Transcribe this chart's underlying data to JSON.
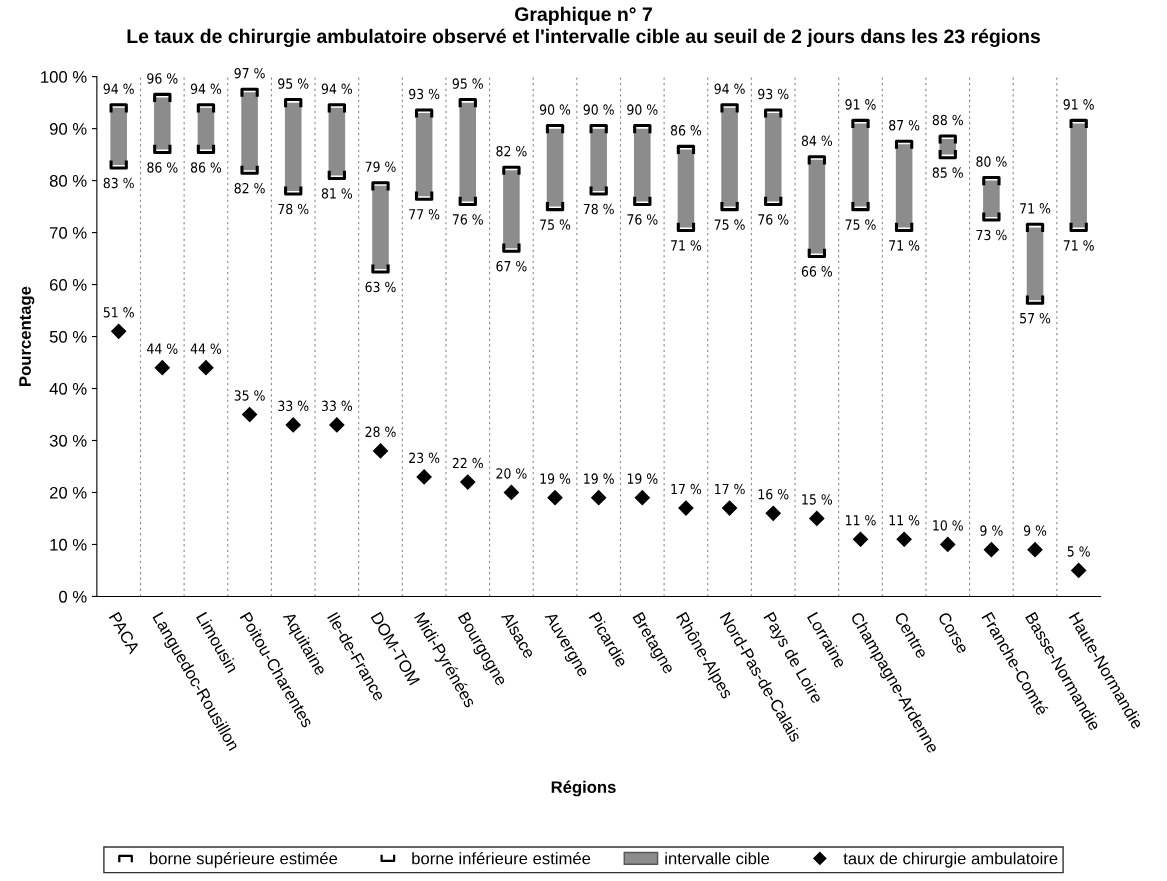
{
  "chart_data": {
    "type": "bar",
    "title": "Graphique n° 7",
    "subtitle": "Le taux de chirurgie ambulatoire observé et l'intervalle cible au seuil de 2 jours dans les 23 régions",
    "xlabel": "Régions",
    "ylabel": "Pourcentage",
    "categories": [
      "PACA",
      "Languedoc-Rousillon",
      "Limousin",
      "Poitou-Charentes",
      "Aquitaine",
      "Ile-de-France",
      "DOM-TOM",
      "Midi-Pyrénées",
      "Bourgogne",
      "Alsace",
      "Auvergne",
      "Picardie",
      "Bretagne",
      "Rhône-Alpes",
      "Nord-Pas-de-Calais",
      "Pays de Loire",
      "Lorraine",
      "Champagne-Ardenne",
      "Centre",
      "Corse",
      "Franche-Comté",
      "Basse-Normandie",
      "Haute-Normandie"
    ],
    "series": [
      {
        "name": "borne supérieure estimée",
        "type": "scatter",
        "color": "#000000",
        "values": [
          94,
          96,
          94,
          97,
          95,
          94,
          79,
          93,
          95,
          82,
          90,
          90,
          90,
          86,
          94,
          93,
          84,
          91,
          87,
          88,
          80,
          71,
          91
        ],
        "value_labels": [
          "94 %",
          "96 %",
          "94 %",
          "97 %",
          "95 %",
          "94 %",
          "79 %",
          "93 %",
          "95 %",
          "82 %",
          "90 %",
          "90 %",
          "90 %",
          "86 %",
          "94 %",
          "93 %",
          "84 %",
          "91 %",
          "87 %",
          "88 %",
          "80 %",
          "71 %",
          "91 %"
        ]
      },
      {
        "name": "borne inférieure estimée",
        "type": "scatter",
        "color": "#000000",
        "values": [
          83,
          86,
          86,
          82,
          78,
          81,
          63,
          77,
          76,
          67,
          75,
          78,
          76,
          71,
          75,
          76,
          66,
          75,
          71,
          85,
          73,
          57,
          71
        ],
        "value_labels": [
          "83 %",
          "86 %",
          "86 %",
          "82 %",
          "78 %",
          "81 %",
          "63 %",
          "77 %",
          "76 %",
          "67 %",
          "75 %",
          "78 %",
          "76 %",
          "71 %",
          "75 %",
          "76 %",
          "66 %",
          "75 %",
          "71 %",
          "85 %",
          "73 %",
          "57 %",
          "71 %"
        ]
      },
      {
        "name": "intervalle cible",
        "type": "bar",
        "color": "#8c8c8c",
        "base": [
          83,
          86,
          86,
          82,
          78,
          81,
          63,
          77,
          76,
          67,
          75,
          78,
          76,
          71,
          75,
          76,
          66,
          75,
          71,
          85,
          73,
          57,
          71
        ],
        "values": [
          11,
          10,
          8,
          15,
          17,
          13,
          16,
          16,
          19,
          15,
          15,
          12,
          14,
          15,
          19,
          17,
          18,
          16,
          16,
          3,
          7,
          14,
          20
        ]
      },
      {
        "name": "taux de chirurgie ambulatoire",
        "type": "scatter",
        "marker": "diamond",
        "color": "#000000",
        "values": [
          51,
          44,
          44,
          35,
          33,
          33,
          28,
          23,
          22,
          20,
          19,
          19,
          19,
          17,
          17,
          16,
          15,
          11,
          11,
          10,
          9,
          9,
          5
        ],
        "value_labels": [
          "51 %",
          "44 %",
          "44 %",
          "35 %",
          "33 %",
          "33 %",
          "28 %",
          "23 %",
          "22 %",
          "20 %",
          "19 %",
          "19 %",
          "19 %",
          "17 %",
          "17 %",
          "16 %",
          "15 %",
          "11 %",
          "11 %",
          "10 %",
          "9 %",
          "9 %",
          "5 %"
        ]
      }
    ],
    "ylim": [
      0,
      100
    ],
    "yticks": [
      {
        "value": 0,
        "label": "0 %"
      },
      {
        "value": 10,
        "label": "10 %"
      },
      {
        "value": 20,
        "label": "20 %"
      },
      {
        "value": 30,
        "label": "30 %"
      },
      {
        "value": 40,
        "label": "40 %"
      },
      {
        "value": 50,
        "label": "50 %"
      },
      {
        "value": 60,
        "label": "60 %"
      },
      {
        "value": 70,
        "label": "70 %"
      },
      {
        "value": 80,
        "label": "80 %"
      },
      {
        "value": 90,
        "label": "90 %"
      },
      {
        "value": 100,
        "label": "100 %"
      }
    ],
    "grid": "x",
    "legend": "bottom"
  }
}
